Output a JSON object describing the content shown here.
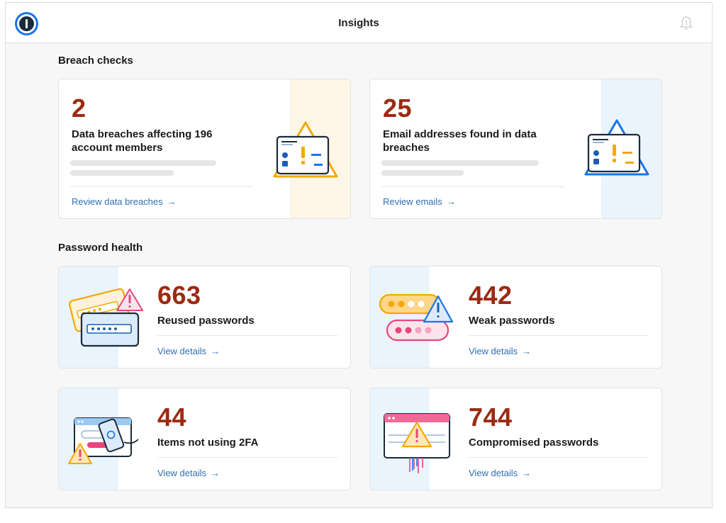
{
  "header": {
    "title": "Insights",
    "logo_icon": "1password-logo-icon",
    "bell_icon": "bell-icon"
  },
  "breach": {
    "heading": "Breach checks",
    "cards": [
      {
        "value": "2",
        "line1": "Data breaches affecting 196",
        "line2": "account members",
        "link": "Review data breaches",
        "arrow": "→",
        "accent": "#f5a800",
        "tint": "#fdf6e7"
      },
      {
        "value": "25",
        "line1": "Email addresses found in data",
        "line2": "breaches",
        "link": "Review emails",
        "arrow": "→",
        "accent": "#1a73e8",
        "tint": "#eaf4fd"
      }
    ]
  },
  "health": {
    "heading": "Password health",
    "cards": [
      {
        "value": "663",
        "label": "Reused passwords",
        "link": "View details",
        "arrow": "→"
      },
      {
        "value": "442",
        "label": "Weak passwords",
        "link": "View details",
        "arrow": "→"
      },
      {
        "value": "44",
        "label": "Items not using 2FA",
        "link": "View details",
        "arrow": "→"
      },
      {
        "value": "744",
        "label": "Compromised passwords",
        "link": "View details",
        "arrow": "→"
      }
    ]
  },
  "colors": {
    "number": "#9b2a12",
    "link": "#2f6fb5",
    "tint_blue": "#eaf4fd"
  }
}
